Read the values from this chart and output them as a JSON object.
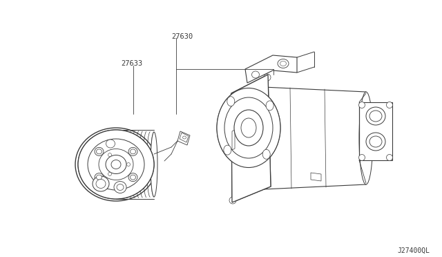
{
  "bg_color": "#ffffff",
  "label_27630": "27630",
  "label_27633": "27633",
  "diagram_code": "J27400QL",
  "line_color": "#3a3a3a",
  "text_color": "#3a3a3a",
  "font_size_labels": 7.5,
  "font_size_code": 7,
  "fig_w": 6.4,
  "fig_h": 3.72,
  "dpi": 100
}
